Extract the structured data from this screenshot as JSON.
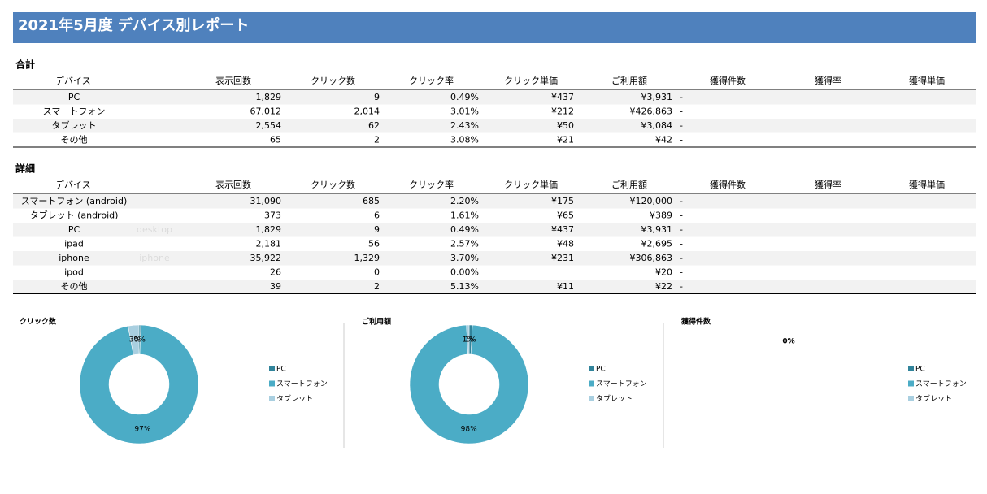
{
  "header": {
    "title": "2021年5月度 デバイス別レポート"
  },
  "summary": {
    "title": "合計",
    "columns": [
      "デバイス",
      "表示回数",
      "クリック数",
      "クリック率",
      "クリック単価",
      "ご利用額",
      "獲得件数",
      "獲得率",
      "獲得単価"
    ],
    "rows": [
      [
        "PC",
        "1,829",
        "9",
        "0.49%",
        "¥437",
        "¥3,931",
        "-"
      ],
      [
        "スマートフォン",
        "67,012",
        "2,014",
        "3.01%",
        "¥212",
        "¥426,863",
        "-"
      ],
      [
        "タブレット",
        "2,554",
        "62",
        "2.43%",
        "¥50",
        "¥3,084",
        "-"
      ],
      [
        "その他",
        "65",
        "2",
        "3.08%",
        "¥21",
        "¥42",
        "-"
      ]
    ]
  },
  "detail": {
    "title": "詳細",
    "columns": [
      "デバイス",
      "表示回数",
      "クリック数",
      "クリック率",
      "クリック単価",
      "ご利用額",
      "獲得件数",
      "獲得率",
      "獲得単価"
    ],
    "rows": [
      [
        "スマートフォン (android)",
        "31,090",
        "685",
        "2.20%",
        "¥175",
        "¥120,000",
        "-"
      ],
      [
        "タブレット (android)",
        "373",
        "6",
        "1.61%",
        "¥65",
        "¥389",
        "-"
      ],
      [
        "PC",
        "1,829",
        "9",
        "0.49%",
        "¥437",
        "¥3,931",
        "-"
      ],
      [
        "ipad",
        "2,181",
        "56",
        "2.57%",
        "¥48",
        "¥2,695",
        "-"
      ],
      [
        "iphone",
        "35,922",
        "1,329",
        "3.70%",
        "¥231",
        "¥306,863",
        "-"
      ],
      [
        "ipod",
        "26",
        "0",
        "0.00%",
        null,
        "¥20",
        "-"
      ],
      [
        "その他",
        "39",
        "2",
        "5.13%",
        "¥11",
        "¥22",
        "-"
      ]
    ],
    "faint_labels": {
      "2": "desktop",
      "4": "iphone"
    }
  },
  "charts": [
    {
      "type": "pie",
      "title": "クリック数",
      "categories": [
        "PC",
        "スマートフォン",
        "タブレット"
      ],
      "colors": [
        "#31849b",
        "#4bacc6",
        "#a9cfe0"
      ],
      "values": [
        0.43,
        96.59,
        2.97
      ],
      "value_labels": [
        "0%",
        "97%",
        "3%"
      ]
    },
    {
      "type": "pie",
      "title": "ご利用額",
      "categories": [
        "PC",
        "スマートフォン",
        "タブレット"
      ],
      "colors": [
        "#31849b",
        "#4bacc6",
        "#a9cfe0"
      ],
      "values": [
        0.91,
        98.38,
        0.71
      ],
      "value_labels": [
        "1%",
        "98%",
        "1%"
      ]
    },
    {
      "type": "pie",
      "title": "獲得件数",
      "categories": [
        "PC",
        "スマートフォン",
        "タブレット"
      ],
      "colors": [
        "#31849b",
        "#4bacc6",
        "#a9cfe0"
      ],
      "empty_label": "0%"
    }
  ]
}
